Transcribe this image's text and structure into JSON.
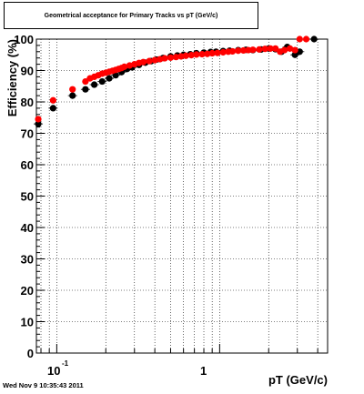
{
  "chart_data": {
    "type": "scatter",
    "title": "Geometrical acceptance for Primary Tracks vs pT (GeV/c)",
    "xlabel": "pT (GeV/c)",
    "ylabel": "Efficiency (%)",
    "xscale": "log",
    "xlim": [
      0.075,
      4.6
    ],
    "ylim": [
      0,
      100
    ],
    "x_tick_labels": [
      "10",
      "-1",
      "1"
    ],
    "y_tick_labels": [
      "0",
      "10",
      "20",
      "30",
      "40",
      "50",
      "60",
      "70",
      "80",
      "90",
      "100"
    ],
    "grid": true,
    "legend": "none",
    "series": [
      {
        "color": "#000000",
        "marker": "circle",
        "x": [
          0.077,
          0.095,
          0.125,
          0.15,
          0.17,
          0.19,
          0.21,
          0.23,
          0.25,
          0.27,
          0.29,
          0.32,
          0.35,
          0.38,
          0.41,
          0.45,
          0.5,
          0.55,
          0.6,
          0.66,
          0.72,
          0.8,
          0.88,
          0.95,
          1.05,
          1.15,
          1.3,
          1.45,
          1.6,
          1.8,
          2.0,
          2.2,
          2.4,
          2.6,
          2.9,
          3.1,
          3.8
        ],
        "y": [
          73.0,
          78.0,
          82.0,
          84.0,
          85.5,
          86.5,
          87.5,
          88.5,
          89.5,
          90.5,
          91.0,
          91.8,
          92.5,
          93.0,
          93.5,
          94.0,
          94.5,
          94.8,
          95.0,
          95.2,
          95.5,
          95.7,
          95.9,
          96.0,
          96.2,
          96.3,
          96.5,
          96.6,
          96.5,
          96.7,
          97.0,
          96.8,
          96.0,
          97.5,
          95.0,
          96.0,
          100.0
        ]
      },
      {
        "color": "#ff0000",
        "marker": "circle",
        "x": [
          0.077,
          0.095,
          0.125,
          0.15,
          0.16,
          0.17,
          0.18,
          0.19,
          0.2,
          0.21,
          0.22,
          0.23,
          0.24,
          0.25,
          0.26,
          0.28,
          0.3,
          0.32,
          0.34,
          0.37,
          0.4,
          0.43,
          0.46,
          0.5,
          0.54,
          0.58,
          0.62,
          0.67,
          0.72,
          0.78,
          0.84,
          0.9,
          0.97,
          1.05,
          1.13,
          1.2,
          1.3,
          1.4,
          1.5,
          1.6,
          1.75,
          1.9,
          2.05,
          2.2,
          2.35,
          2.5,
          2.7,
          2.9,
          3.1,
          3.4
        ],
        "y": [
          74.5,
          80.5,
          84.0,
          86.5,
          87.5,
          88.0,
          88.5,
          89.0,
          89.3,
          89.6,
          89.9,
          90.2,
          90.5,
          90.8,
          91.2,
          91.6,
          92.0,
          92.4,
          92.7,
          93.0,
          93.3,
          93.6,
          93.9,
          94.1,
          94.3,
          94.5,
          94.7,
          94.9,
          95.1,
          95.2,
          95.3,
          95.5,
          95.6,
          95.8,
          96.0,
          96.1,
          96.3,
          96.4,
          96.5,
          96.6,
          96.7,
          96.9,
          97.0,
          97.0,
          96.0,
          96.5,
          97.0,
          96.5,
          100.0,
          100.0
        ]
      }
    ]
  },
  "timestamp": "Wed Nov  9 10:35:43 2011"
}
